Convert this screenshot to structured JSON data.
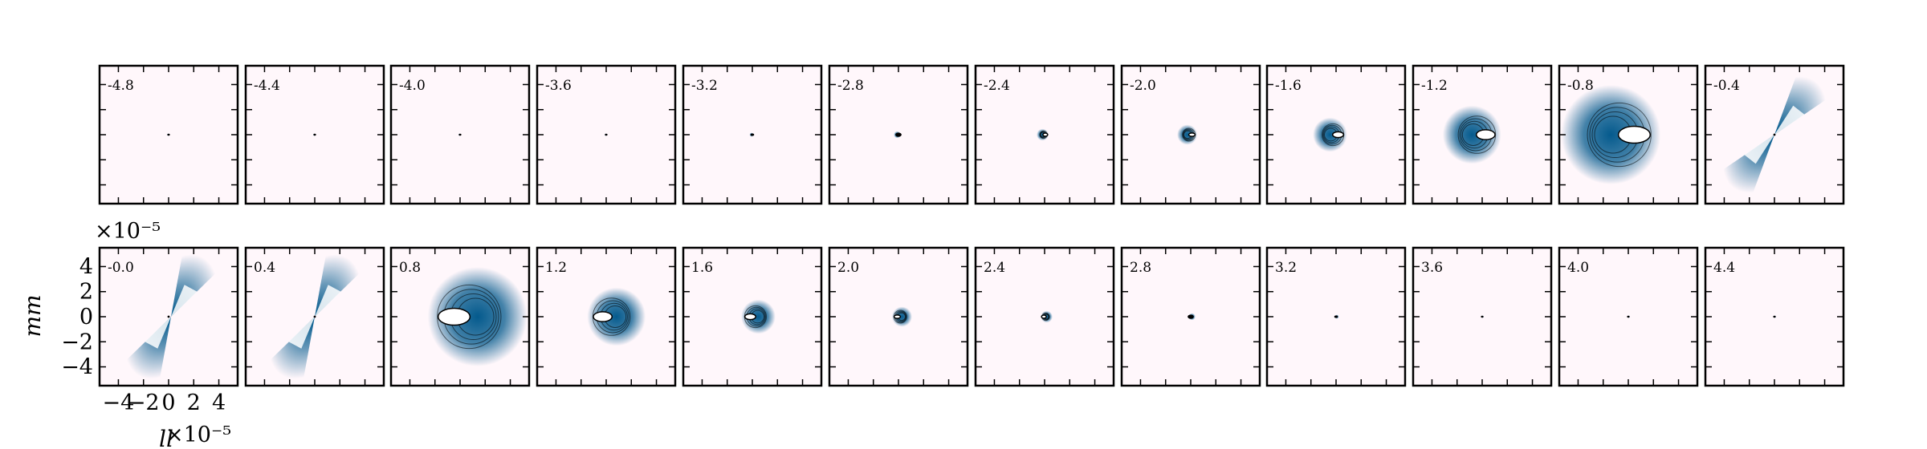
{
  "chart_data": {
    "type": "heatmap",
    "description_grid": "2 rows x 12 columns of small image panels",
    "panel_labels": [
      "-4.8",
      "-4.4",
      "-4.0",
      "-3.6",
      "-3.2",
      "-2.8",
      "-2.4",
      "-2.0",
      "-1.6",
      "-1.2",
      "-0.8",
      "-0.4",
      "-0.0",
      "0.4",
      "0.8",
      "1.2",
      "1.6",
      "2.0",
      "2.4",
      "2.8",
      "3.2",
      "3.6",
      "4.0",
      "4.4"
    ],
    "panel_values": [
      -4.8,
      -4.4,
      -4.0,
      -3.6,
      -3.2,
      -2.8,
      -2.4,
      -2.0,
      -1.6,
      -1.2,
      -0.8,
      -0.4,
      -0.0,
      0.4,
      0.8,
      1.2,
      1.6,
      2.0,
      2.4,
      2.8,
      3.2,
      3.6,
      4.0,
      4.4
    ],
    "xlabel": "ll",
    "ylabel": "mm",
    "x_offset_label": "×10⁻⁵",
    "y_offset_label": "×10⁻⁵",
    "x_tick_labels": [
      "−4",
      "−2",
      "0",
      "2",
      "4"
    ],
    "y_tick_labels": [
      "4",
      "2",
      "0",
      "−2",
      "−4"
    ],
    "x_ticks": [
      -4,
      -2,
      0,
      2,
      4
    ],
    "y_ticks": [
      4,
      2,
      0,
      -2,
      -4
    ],
    "xlim": [
      -5.5,
      5.5
    ],
    "ylim": [
      -5.5,
      5.5
    ],
    "colormap": "PuBu",
    "background_color": "#fff7fb",
    "feature_color": "#045a8d",
    "outline_color": "#000000"
  }
}
